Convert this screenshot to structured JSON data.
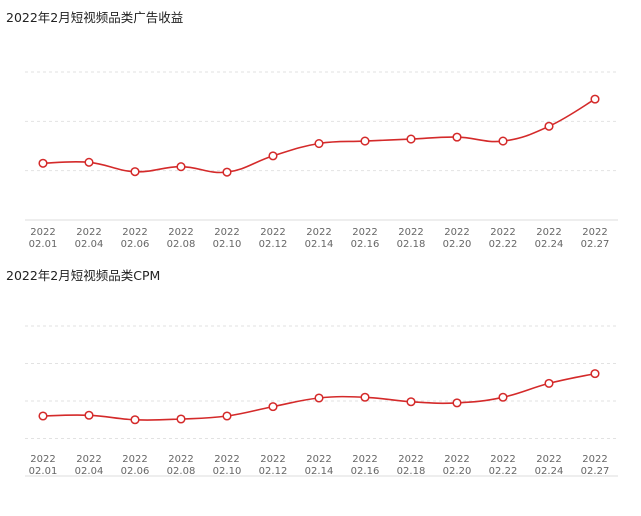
{
  "chart_data": [
    {
      "type": "line",
      "title": "2022年2月短视频品类广告收益",
      "categories": [
        [
          "2022",
          "02.01"
        ],
        [
          "2022",
          "02.04"
        ],
        [
          "2022",
          "02.06"
        ],
        [
          "2022",
          "02.08"
        ],
        [
          "2022",
          "02.10"
        ],
        [
          "2022",
          "02.12"
        ],
        [
          "2022",
          "02.14"
        ],
        [
          "2022",
          "02.16"
        ],
        [
          "2022",
          "02.18"
        ],
        [
          "2022",
          "02.20"
        ],
        [
          "2022",
          "02.22"
        ],
        [
          "2022",
          "02.24"
        ],
        [
          "2022",
          "02.27"
        ]
      ],
      "series": [
        {
          "values": [
            1.15,
            1.17,
            0.98,
            1.08,
            0.97,
            1.3,
            1.55,
            1.6,
            1.64,
            1.68,
            1.6,
            1.9,
            2.45
          ]
        }
      ],
      "ylim": [
        0,
        3
      ],
      "grid": true,
      "color": "#d42a2a"
    },
    {
      "type": "line",
      "title": "2022年2月短视频品类CPM",
      "categories": [
        [
          "2022",
          "02.01"
        ],
        [
          "2022",
          "02.04"
        ],
        [
          "2022",
          "02.06"
        ],
        [
          "2022",
          "02.08"
        ],
        [
          "2022",
          "02.10"
        ],
        [
          "2022",
          "02.12"
        ],
        [
          "2022",
          "02.14"
        ],
        [
          "2022",
          "02.16"
        ],
        [
          "2022",
          "02.18"
        ],
        [
          "2022",
          "02.20"
        ],
        [
          "2022",
          "02.22"
        ],
        [
          "2022",
          "02.24"
        ],
        [
          "2022",
          "02.27"
        ]
      ],
      "series": [
        {
          "values": [
            1.6,
            1.62,
            1.5,
            1.52,
            1.6,
            1.85,
            2.08,
            2.1,
            1.98,
            1.95,
            2.1,
            2.47,
            2.73
          ]
        }
      ],
      "ylim": [
        0,
        4
      ],
      "grid": true,
      "color": "#d42a2a"
    }
  ]
}
